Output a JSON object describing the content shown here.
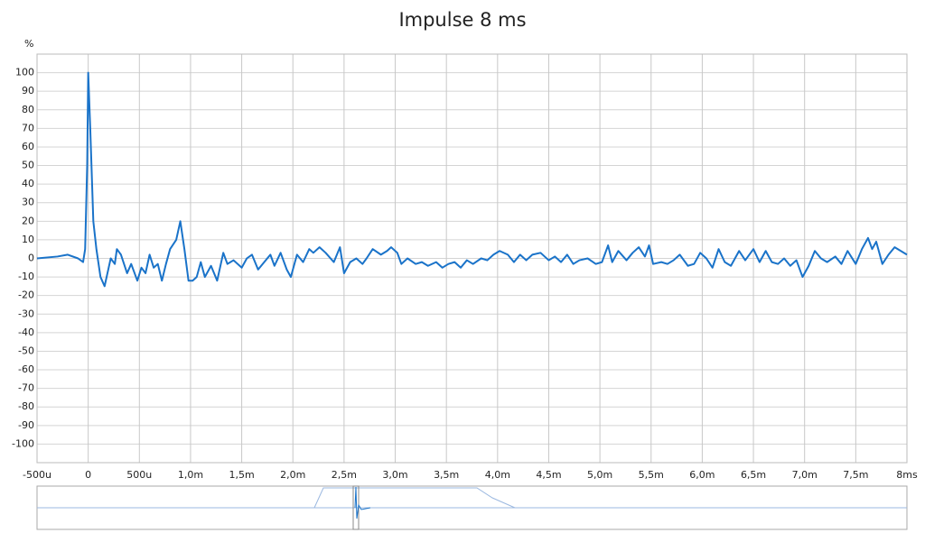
{
  "chart_data": {
    "type": "line",
    "title": "Impulse 8 ms",
    "y_label": "%",
    "x": [
      -0.5,
      -0.3,
      -0.2,
      -0.1,
      -0.05,
      -0.03,
      -0.01,
      0,
      0.02,
      0.05,
      0.08,
      0.12,
      0.16,
      0.2,
      0.22,
      0.26,
      0.28,
      0.32,
      0.38,
      0.42,
      0.48,
      0.52,
      0.56,
      0.6,
      0.64,
      0.68,
      0.72,
      0.76,
      0.8,
      0.86,
      0.9,
      0.94,
      0.98,
      1.02,
      1.06,
      1.1,
      1.14,
      1.2,
      1.26,
      1.32,
      1.36,
      1.42,
      1.5,
      1.55,
      1.6,
      1.66,
      1.72,
      1.78,
      1.82,
      1.88,
      1.94,
      1.98,
      2.04,
      2.1,
      2.16,
      2.2,
      2.26,
      2.32,
      2.4,
      2.46,
      2.5,
      2.56,
      2.62,
      2.68,
      2.72,
      2.78,
      2.86,
      2.92,
      2.96,
      3.02,
      3.06,
      3.12,
      3.2,
      3.26,
      3.32,
      3.4,
      3.46,
      3.52,
      3.58,
      3.64,
      3.7,
      3.76,
      3.84,
      3.9,
      3.96,
      4.02,
      4.1,
      4.16,
      4.22,
      4.28,
      4.34,
      4.42,
      4.5,
      4.56,
      4.62,
      4.68,
      4.74,
      4.8,
      4.88,
      4.96,
      5.02,
      5.08,
      5.12,
      5.18,
      5.26,
      5.32,
      5.38,
      5.44,
      5.48,
      5.52,
      5.6,
      5.66,
      5.72,
      5.78,
      5.86,
      5.92,
      5.98,
      6.04,
      6.1,
      6.16,
      6.22,
      6.28,
      6.36,
      6.42,
      6.5,
      6.56,
      6.62,
      6.68,
      6.74,
      6.8,
      6.86,
      6.92,
      6.98,
      7.04,
      7.1,
      7.16,
      7.22,
      7.3,
      7.36,
      7.42,
      7.5,
      7.56,
      7.62,
      7.66,
      7.7,
      7.76,
      7.82,
      7.88,
      7.94,
      8.0
    ],
    "series": [
      {
        "color": "#1a73c9",
        "values": [
          0,
          1,
          2,
          0,
          -2,
          5,
          50,
          100,
          70,
          20,
          5,
          -10,
          -15,
          -5,
          0,
          -3,
          5,
          2,
          -8,
          -3,
          -12,
          -5,
          -8,
          2,
          -5,
          -3,
          -12,
          -3,
          5,
          10,
          20,
          5,
          -12,
          -12,
          -10,
          -2,
          -10,
          -4,
          -12,
          3,
          -3,
          -1,
          -5,
          0,
          2,
          -6,
          -2,
          2,
          -4,
          3,
          -6,
          -10,
          2,
          -2,
          5,
          3,
          6,
          3,
          -2,
          6,
          -8,
          -2,
          0,
          -3,
          0,
          5,
          2,
          4,
          6,
          3,
          -3,
          0,
          -3,
          -2,
          -4,
          -2,
          -5,
          -3,
          -2,
          -5,
          -1,
          -3,
          0,
          -1,
          2,
          4,
          2,
          -2,
          2,
          -1,
          2,
          3,
          -1,
          1,
          -2,
          2,
          -3,
          -1,
          0,
          -3,
          -2,
          7,
          -2,
          4,
          -1,
          3,
          6,
          1,
          7,
          -3,
          -2,
          -3,
          -1,
          2,
          -4,
          -3,
          3,
          0,
          -5,
          5,
          -2,
          -4,
          4,
          -1,
          5,
          -2,
          4,
          -2,
          -3,
          0,
          -4,
          -1,
          -10,
          -4,
          4,
          0,
          -2,
          1,
          -3,
          4,
          -3,
          5,
          11,
          5,
          9,
          -3,
          2,
          6,
          4,
          2
        ]
      }
    ],
    "xlim": [
      -0.5,
      8
    ],
    "ylim": [
      -110,
      110
    ],
    "xticks": [
      {
        "value": -0.5,
        "label": "-500u"
      },
      0,
      {
        "value": 0.5,
        "label": "500u"
      },
      {
        "value": 1,
        "label": "1,0m"
      },
      {
        "value": 1.5,
        "label": "1,5m"
      },
      {
        "value": 2,
        "label": "2,0m"
      },
      {
        "value": 2.5,
        "label": "2,5m"
      },
      {
        "value": 3,
        "label": "3,0m"
      },
      {
        "value": 3.5,
        "label": "3,5m"
      },
      {
        "value": 4,
        "label": "4,0m"
      },
      {
        "value": 4.5,
        "label": "4,5m"
      },
      {
        "value": 5,
        "label": "5,0m"
      },
      {
        "value": 5.5,
        "label": "5,5m"
      },
      {
        "value": 6,
        "label": "6,0m"
      },
      {
        "value": 6.5,
        "label": "6,5m"
      },
      {
        "value": 7,
        "label": "7,0m"
      },
      {
        "value": 7.5,
        "label": "7,5m"
      },
      {
        "value": 8,
        "label": "8ms"
      }
    ],
    "yticks": [
      -100,
      -90,
      -80,
      -70,
      -60,
      -50,
      -40,
      -30,
      -20,
      -10,
      0,
      10,
      20,
      30,
      40,
      50,
      60,
      70,
      80,
      90,
      100
    ],
    "grid": true
  }
}
